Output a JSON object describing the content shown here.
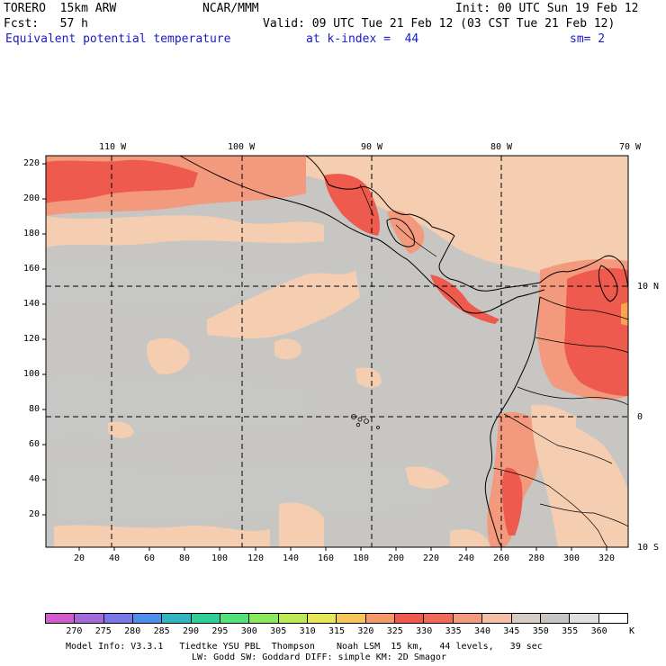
{
  "header": {
    "model": "TORERO  15km ARW",
    "center": "NCAR/MMM",
    "init": "Init: 00 UTC Sun 19 Feb 12",
    "fcst": "Fcst:   57 h",
    "valid": "Valid: 09 UTC Tue 21 Feb 12 (03 CST Tue 21 Feb 12)",
    "field": "Equivalent potential temperature",
    "level": "at k-index =  44",
    "smooth": "sm= 2"
  },
  "map": {
    "longitudes": [
      "110 W",
      "100 W",
      "90 W",
      "80 W",
      "70 W"
    ],
    "latitudes": [
      "10 N",
      "0",
      "10 S"
    ],
    "y_ticks": [
      "220",
      "200",
      "180",
      "160",
      "140",
      "120",
      "100",
      "80",
      "60",
      "40",
      "20"
    ],
    "x_ticks": [
      "20",
      "40",
      "60",
      "80",
      "100",
      "120",
      "140",
      "160",
      "180",
      "200",
      "220",
      "240",
      "260",
      "280",
      "300",
      "320"
    ],
    "colors": {
      "background": "#c8c6c2",
      "light": "#f5cdb1",
      "mid": "#f39a7e",
      "hot": "#ef5a4e",
      "peak": "#f7a552",
      "land_warm": "#f0c7a6",
      "gridline": "#000000"
    }
  },
  "colorbar": {
    "unit": "K",
    "labels": [
      "270",
      "275",
      "280",
      "285",
      "290",
      "295",
      "300",
      "305",
      "310",
      "315",
      "320",
      "325",
      "330",
      "335",
      "340",
      "345",
      "350",
      "355",
      "360"
    ],
    "colors": [
      "#d05cd0",
      "#a46ad8",
      "#7a78e6",
      "#4f8fea",
      "#31b6c0",
      "#2fcf9a",
      "#54e07a",
      "#8ae85c",
      "#bdea54",
      "#e6e85a",
      "#f6c65c",
      "#f4996a",
      "#ef5a4e",
      "#f06a5a",
      "#f39a7e",
      "#f3c0a6",
      "#d7cdc4",
      "#c8c6c2",
      "#e0e0e0",
      "#ffffff"
    ]
  },
  "footer": {
    "line1": "Model Info: V3.3.1   Tiedtke YSU PBL  Thompson    Noah LSM  15 km,   44 levels,   39 sec",
    "line2": "LW: Godd SW: Goddard DIFF: simple KM: 2D Smagor"
  }
}
